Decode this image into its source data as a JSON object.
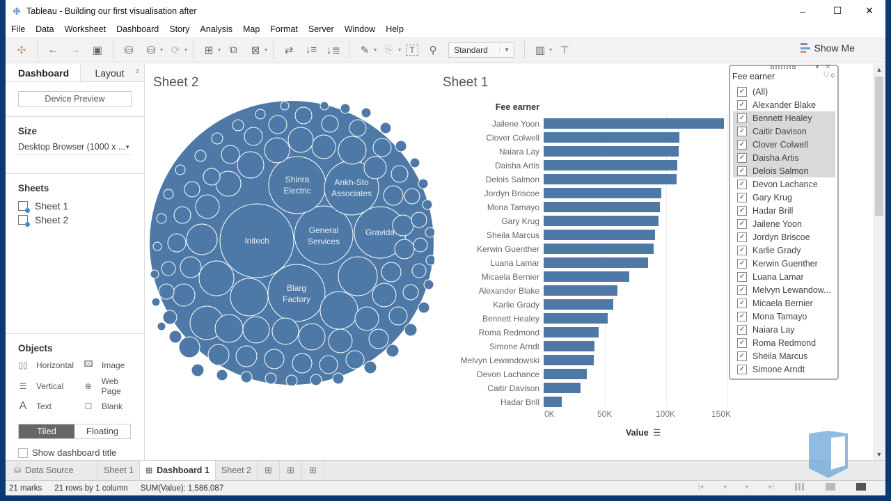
{
  "window": {
    "title": "Tableau - Building our first visualisation after",
    "controls": {
      "minimize": "–",
      "maximize": "☐",
      "close": "✕"
    }
  },
  "menubar": [
    "File",
    "Data",
    "Worksheet",
    "Dashboard",
    "Story",
    "Analysis",
    "Map",
    "Format",
    "Server",
    "Window",
    "Help"
  ],
  "toolbar": {
    "fit_select": "Standard",
    "show_me": "Show Me",
    "icons": [
      "tableau-logo-icon",
      "undo-icon",
      "redo-icon",
      "save-icon",
      "new-datasource-icon",
      "pause-updates-icon",
      "refresh-icon",
      "new-worksheet-icon",
      "duplicate-sheet-icon",
      "clear-sheet-icon",
      "swap-rows-columns-icon",
      "sort-ascending-icon",
      "sort-descending-icon",
      "highlight-icon",
      "group-icon",
      "show-labels-icon",
      "fix-axes-icon",
      "show-cards-icon",
      "presentation-mode-icon"
    ]
  },
  "left_pane": {
    "tabs": {
      "dashboard": "Dashboard",
      "layout": "Layout"
    },
    "device_preview": "Device Preview",
    "size": {
      "heading": "Size",
      "value": "Desktop Browser (1000 x ..."
    },
    "sheets": {
      "heading": "Sheets",
      "items": [
        "Sheet 1",
        "Sheet 2"
      ]
    },
    "objects": {
      "heading": "Objects",
      "items": [
        {
          "label": "Horizontal",
          "icon": "horizontal-container-icon"
        },
        {
          "label": "Image",
          "icon": "image-icon"
        },
        {
          "label": "Vertical",
          "icon": "vertical-container-icon"
        },
        {
          "label": "Web Page",
          "icon": "globe-icon"
        },
        {
          "label": "Text",
          "icon": "text-icon"
        },
        {
          "label": "Blank",
          "icon": "blank-icon"
        }
      ],
      "tiled": "Tiled",
      "floating": "Floating",
      "show_title": "Show dashboard title"
    }
  },
  "canvas": {
    "sheet2_title": "Sheet 2",
    "sheet1_title": "Sheet 1",
    "bubble_labels": [
      "Initech",
      "Shinra Electric",
      "Ankh-Sto Associates",
      "General Services",
      "Gravida",
      "Blarg Factory"
    ]
  },
  "chart_data": [
    {
      "type": "bar",
      "title": "Sheet 1",
      "ylabel": "Fee earner",
      "xlabel": "Value",
      "xlim": [
        0,
        150000
      ],
      "x_ticks": [
        "0K",
        "50K",
        "100K",
        "150K"
      ],
      "grid": true,
      "categories": [
        "Jailene Yoon",
        "Clover Colwell",
        "Naiara Lay",
        "Daisha Artis",
        "Delois Salmon",
        "Jordyn Briscoe",
        "Mona Tamayo",
        "Gary Krug",
        "Sheila Marcus",
        "Kerwin Guenther",
        "Luana Lamar",
        "Micaela Bernier",
        "Alexander Blake",
        "Karlie Grady",
        "Bennett Healey",
        "Roma Redmond",
        "Simone Arndt",
        "Melvyn Lewandowski",
        "Devon Lachance",
        "Caitir Davison",
        "Hadar Brill"
      ],
      "values": [
        147000,
        111000,
        110000,
        109000,
        108500,
        96000,
        95000,
        94000,
        91000,
        90000,
        85000,
        70000,
        60000,
        57000,
        52000,
        45000,
        41500,
        41000,
        35000,
        30000,
        15000
      ]
    },
    {
      "type": "packed-bubble",
      "title": "Sheet 2",
      "labeled_bubbles": [
        "Initech",
        "Shinra Electric",
        "Ankh-Sto Associates",
        "General Services",
        "Gravida",
        "Blarg Factory"
      ],
      "color": "#4e79a7"
    }
  ],
  "filter": {
    "title": "Fee earner",
    "items": [
      {
        "label": "(All)",
        "checked": true,
        "hl": false
      },
      {
        "label": "Alexander Blake",
        "checked": true,
        "hl": false
      },
      {
        "label": "Bennett Healey",
        "checked": true,
        "hl": true
      },
      {
        "label": "Caitir Davison",
        "checked": true,
        "hl": true
      },
      {
        "label": "Clover Colwell",
        "checked": true,
        "hl": true
      },
      {
        "label": "Daisha Artis",
        "checked": true,
        "hl": true
      },
      {
        "label": "Delois Salmon",
        "checked": true,
        "hl": true
      },
      {
        "label": "Devon Lachance",
        "checked": true,
        "hl": false
      },
      {
        "label": "Gary Krug",
        "checked": true,
        "hl": false
      },
      {
        "label": "Hadar Brill",
        "checked": true,
        "hl": false
      },
      {
        "label": "Jailene Yoon",
        "checked": true,
        "hl": false
      },
      {
        "label": "Jordyn Briscoe",
        "checked": true,
        "hl": false
      },
      {
        "label": "Karlie Grady",
        "checked": true,
        "hl": false
      },
      {
        "label": "Kerwin Guenther",
        "checked": true,
        "hl": false
      },
      {
        "label": "Luana Lamar",
        "checked": true,
        "hl": false
      },
      {
        "label": "Melvyn Lewandow...",
        "checked": true,
        "hl": false
      },
      {
        "label": "Micaela Bernier",
        "checked": true,
        "hl": false
      },
      {
        "label": "Mona Tamayo",
        "checked": true,
        "hl": false
      },
      {
        "label": "Naiara Lay",
        "checked": true,
        "hl": false
      },
      {
        "label": "Roma Redmond",
        "checked": true,
        "hl": false
      },
      {
        "label": "Sheila Marcus",
        "checked": true,
        "hl": false
      },
      {
        "label": "Simone Arndt",
        "checked": true,
        "hl": false
      }
    ]
  },
  "sheet_tabs": {
    "data_source": "Data Source",
    "tabs": [
      {
        "label": "Sheet 1",
        "active": false
      },
      {
        "label": "Dashboard 1",
        "active": true
      },
      {
        "label": "Sheet 2",
        "active": false
      }
    ]
  },
  "status": {
    "marks": "21 marks",
    "rows": "21 rows by 1 column",
    "sum": "SUM(Value): 1,586,087"
  },
  "colors": {
    "bar": "#4e79a7",
    "accent": "#3b8bd6"
  }
}
